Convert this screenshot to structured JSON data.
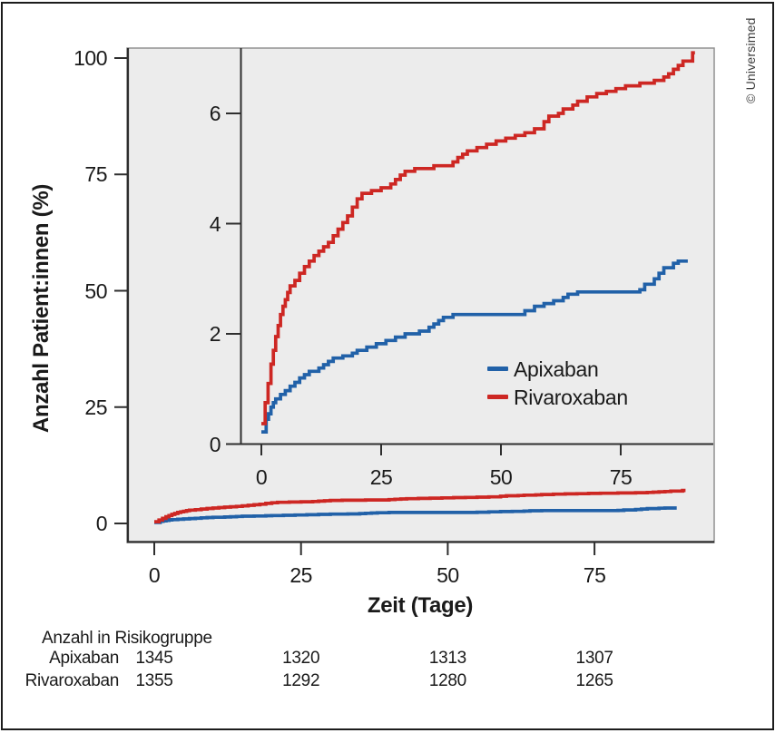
{
  "copyright": "© Universimed",
  "colors": {
    "apixaban": "#2161a8",
    "rivaroxaban": "#cd2723",
    "panel_bg": "#ececec",
    "panel_border": "#919191",
    "axis": "#2e2e2e"
  },
  "risk_table": {
    "title": "Anzahl in Risikogruppe",
    "time_points": [
      0,
      25,
      50,
      75
    ],
    "rows": [
      {
        "label": "Apixaban",
        "values": [
          "1345",
          "1320",
          "1313",
          "1307"
        ]
      },
      {
        "label": "Rivaroxaban",
        "values": [
          "1355",
          "1292",
          "1280",
          "1265"
        ]
      }
    ]
  },
  "chart_data": {
    "type": "line",
    "title": "",
    "xlabel": "Zeit (Tage)",
    "ylabel": "Anzahl Patient:innen (%)",
    "legend": [
      "Apixaban",
      "Rivaroxaban"
    ],
    "legend_position": "inset lower right",
    "grid": false,
    "main_axis": {
      "x_ticks": [
        0,
        25,
        50,
        75
      ],
      "y_ticks": [
        0,
        25,
        50,
        75,
        100
      ],
      "xlim": [
        0,
        95
      ],
      "ylim": [
        0,
        100
      ]
    },
    "inset_axis": {
      "x_ticks": [
        0,
        25,
        50,
        75
      ],
      "y_ticks": [
        0,
        2,
        4,
        6
      ],
      "xlim": [
        0,
        94
      ],
      "ylim": [
        0,
        7.2
      ]
    },
    "series": [
      {
        "name": "Apixaban",
        "color_key": "apixaban",
        "end_day": 89,
        "steps": [
          [
            0,
            0.22
          ],
          [
            1,
            0.45
          ],
          [
            1.5,
            0.55
          ],
          [
            2,
            0.67
          ],
          [
            2.5,
            0.75
          ],
          [
            3,
            0.82
          ],
          [
            4,
            0.9
          ],
          [
            5,
            0.97
          ],
          [
            6,
            1.05
          ],
          [
            7,
            1.12
          ],
          [
            8,
            1.2
          ],
          [
            9,
            1.26
          ],
          [
            10,
            1.32
          ],
          [
            12,
            1.38
          ],
          [
            13,
            1.44
          ],
          [
            14,
            1.5
          ],
          [
            15,
            1.56
          ],
          [
            17,
            1.6
          ],
          [
            19,
            1.65
          ],
          [
            20,
            1.7
          ],
          [
            22,
            1.76
          ],
          [
            24,
            1.82
          ],
          [
            26,
            1.88
          ],
          [
            28,
            1.94
          ],
          [
            30,
            2.0
          ],
          [
            33,
            2.05
          ],
          [
            35,
            2.12
          ],
          [
            36,
            2.18
          ],
          [
            37,
            2.24
          ],
          [
            38,
            2.3
          ],
          [
            40,
            2.35
          ],
          [
            55,
            2.42
          ],
          [
            57,
            2.5
          ],
          [
            59,
            2.55
          ],
          [
            61,
            2.6
          ],
          [
            63,
            2.66
          ],
          [
            64,
            2.72
          ],
          [
            66,
            2.76
          ],
          [
            79,
            2.8
          ],
          [
            80,
            2.9
          ],
          [
            82,
            3.0
          ],
          [
            83,
            3.1
          ],
          [
            84,
            3.2
          ],
          [
            86,
            3.28
          ],
          [
            87,
            3.32
          ]
        ]
      },
      {
        "name": "Rivaroxaban",
        "color_key": "rivaroxaban",
        "end_day": 90.5,
        "steps": [
          [
            0,
            0.37
          ],
          [
            0.8,
            0.75
          ],
          [
            1.4,
            1.1
          ],
          [
            2,
            1.45
          ],
          [
            2.5,
            1.7
          ],
          [
            3,
            1.95
          ],
          [
            3.5,
            2.15
          ],
          [
            4,
            2.35
          ],
          [
            4.5,
            2.5
          ],
          [
            5,
            2.62
          ],
          [
            5.5,
            2.75
          ],
          [
            6,
            2.87
          ],
          [
            7,
            2.97
          ],
          [
            8,
            3.1
          ],
          [
            9,
            3.22
          ],
          [
            10,
            3.32
          ],
          [
            11,
            3.42
          ],
          [
            12,
            3.5
          ],
          [
            13,
            3.58
          ],
          [
            14,
            3.66
          ],
          [
            15,
            3.78
          ],
          [
            16,
            3.9
          ],
          [
            17,
            4.02
          ],
          [
            18,
            4.14
          ],
          [
            19,
            4.3
          ],
          [
            20,
            4.45
          ],
          [
            21,
            4.55
          ],
          [
            23,
            4.6
          ],
          [
            25,
            4.65
          ],
          [
            27,
            4.72
          ],
          [
            28,
            4.8
          ],
          [
            29,
            4.88
          ],
          [
            30,
            4.95
          ],
          [
            32,
            5.0
          ],
          [
            36,
            5.05
          ],
          [
            40,
            5.12
          ],
          [
            41,
            5.2
          ],
          [
            42,
            5.26
          ],
          [
            43,
            5.32
          ],
          [
            45,
            5.38
          ],
          [
            47,
            5.44
          ],
          [
            49,
            5.5
          ],
          [
            51,
            5.55
          ],
          [
            53,
            5.6
          ],
          [
            55,
            5.65
          ],
          [
            57,
            5.72
          ],
          [
            59,
            5.85
          ],
          [
            60,
            5.95
          ],
          [
            62,
            6.0
          ],
          [
            63,
            6.08
          ],
          [
            65,
            6.15
          ],
          [
            66,
            6.22
          ],
          [
            68,
            6.3
          ],
          [
            70,
            6.36
          ],
          [
            72,
            6.4
          ],
          [
            74,
            6.45
          ],
          [
            76,
            6.5
          ],
          [
            79,
            6.55
          ],
          [
            82,
            6.6
          ],
          [
            84,
            6.66
          ],
          [
            85,
            6.72
          ],
          [
            86,
            6.8
          ],
          [
            87,
            6.87
          ],
          [
            88,
            6.95
          ],
          [
            90,
            7.1
          ]
        ]
      }
    ]
  }
}
